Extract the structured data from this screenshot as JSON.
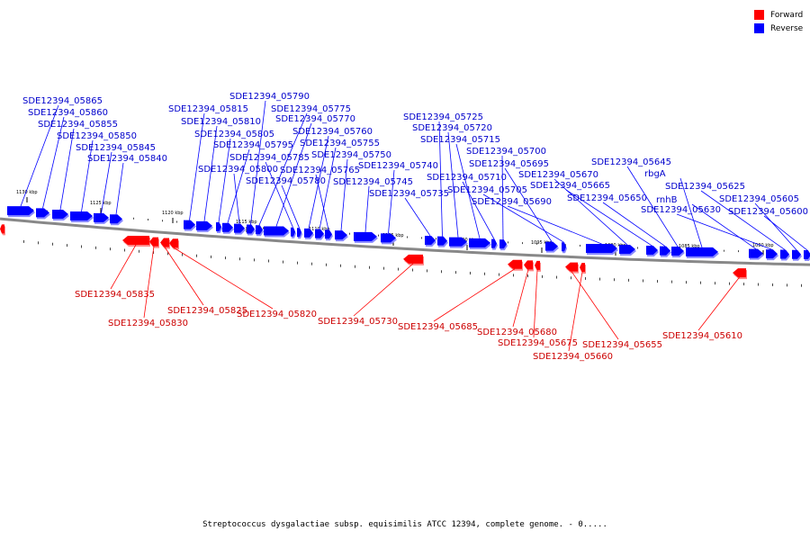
{
  "caption": "Streptococcus dysgalactiae subsp. equisimilis ATCC 12394, complete genome. - 0.....",
  "legend": [
    {
      "label": "Forward",
      "color": "#ff0000"
    },
    {
      "label": "Reverse",
      "color": "#0000ff"
    }
  ],
  "colors": {
    "forward": "#ff0000",
    "reverse": "#0000ff",
    "forward_label": "#cc0000",
    "reverse_label": "#0000cc"
  },
  "ticks": [
    "1130 kbp",
    "1125 kbp",
    "1120 kbp",
    "1115 kbp",
    "1110 kbp",
    "1105 kbp",
    "1100 kbp",
    "1095 kbp",
    "1090 kbp",
    "1085 kbp",
    "1080 kbp"
  ],
  "reverse_genes": [
    "SDE12394_05865",
    "SDE12394_05860",
    "SDE12394_05855",
    "SDE12394_05850",
    "SDE12394_05845",
    "SDE12394_05840",
    "SDE12394_05815",
    "SDE12394_05810",
    "SDE12394_05805",
    "SDE12394_05795",
    "SDE12394_05800",
    "SDE12394_05790",
    "SDE12394_05775",
    "SDE12394_05770",
    "SDE12394_05785",
    "SDE12394_05780",
    "SDE12394_05760",
    "SDE12394_05755",
    "SDE12394_05765",
    "SDE12394_05750",
    "SDE12394_05745",
    "SDE12394_05740",
    "SDE12394_05735",
    "SDE12394_05725",
    "SDE12394_05720",
    "SDE12394_05715",
    "SDE12394_05710",
    "SDE12394_05700",
    "SDE12394_05695",
    "SDE12394_05705",
    "SDE12394_05690",
    "SDE12394_05670",
    "SDE12394_05665",
    "SDE12394_05650",
    "SDE12394_05645",
    "rbgA",
    "rnhB",
    "SDE12394_05630",
    "SDE12394_05625",
    "SDE12394_05605",
    "SDE12394_05600"
  ],
  "forward_genes": [
    "SDE12394_05835",
    "SDE12394_05830",
    "SDE12394_05825",
    "SDE12394_05820",
    "SDE12394_05730",
    "SDE12394_05685",
    "SDE12394_05680",
    "SDE12394_05675",
    "SDE12394_05660",
    "SDE12394_05655",
    "SDE12394_05610"
  ]
}
